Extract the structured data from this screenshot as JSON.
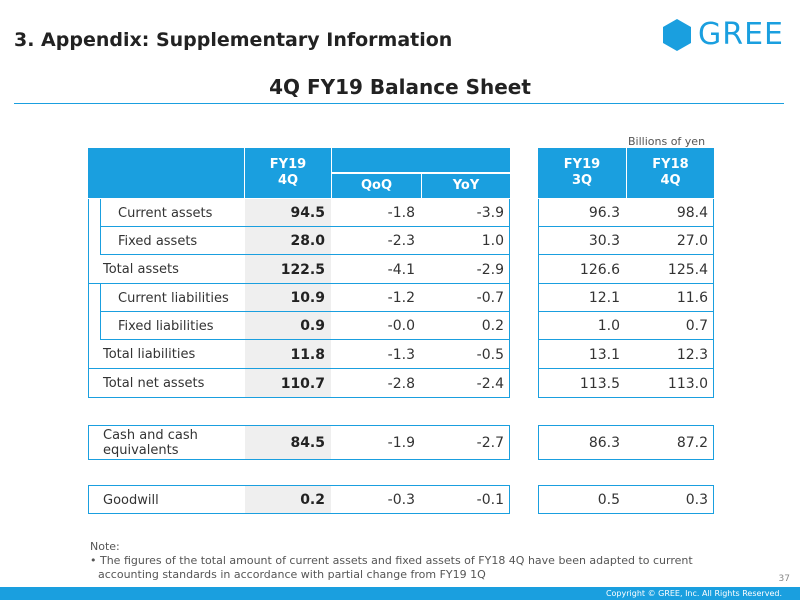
{
  "header": {
    "section_title": "3. Appendix: Supplementary Information",
    "logo_text": "GREE",
    "slide_title": "4Q FY19 Balance Sheet",
    "unit_label": "Billions of yen"
  },
  "columns": {
    "fy19_4q": "FY19\n4Q",
    "qoq": "QoQ",
    "yoy": "YoY",
    "fy19_3q": "FY19\n3Q",
    "fy18_4q": "FY18\n4Q"
  },
  "rows": [
    {
      "label": "Current assets",
      "fy19_4q": "94.5",
      "qoq": "-1.8",
      "yoy": "-3.9",
      "fy19_3q": "96.3",
      "fy18_4q": "98.4"
    },
    {
      "label": "Fixed assets",
      "fy19_4q": "28.0",
      "qoq": "-2.3",
      "yoy": "1.0",
      "fy19_3q": "30.3",
      "fy18_4q": "27.0"
    },
    {
      "label": "Total assets",
      "fy19_4q": "122.5",
      "qoq": "-4.1",
      "yoy": "-2.9",
      "fy19_3q": "126.6",
      "fy18_4q": "125.4"
    },
    {
      "label": "Current liabilities",
      "fy19_4q": "10.9",
      "qoq": "-1.2",
      "yoy": "-0.7",
      "fy19_3q": "12.1",
      "fy18_4q": "11.6"
    },
    {
      "label": "Fixed liabilities",
      "fy19_4q": "0.9",
      "qoq": "-0.0",
      "yoy": "0.2",
      "fy19_3q": "1.0",
      "fy18_4q": "0.7"
    },
    {
      "label": "Total liabilities",
      "fy19_4q": "11.8",
      "qoq": "-1.3",
      "yoy": "-0.5",
      "fy19_3q": "13.1",
      "fy18_4q": "12.3"
    },
    {
      "label": "Total net assets",
      "fy19_4q": "110.7",
      "qoq": "-2.8",
      "yoy": "-2.4",
      "fy19_3q": "113.5",
      "fy18_4q": "113.0"
    },
    {
      "label": "Cash and cash equivalents",
      "fy19_4q": "84.5",
      "qoq": "-1.9",
      "yoy": "-2.7",
      "fy19_3q": "86.3",
      "fy18_4q": "87.2"
    },
    {
      "label": "Goodwill",
      "fy19_4q": "0.2",
      "qoq": "-0.3",
      "yoy": "-0.1",
      "fy19_3q": "0.5",
      "fy18_4q": "0.3"
    }
  ],
  "note": {
    "title": "Note:",
    "text": "• The figures of the total amount of current assets and fixed assets of FY18 4Q have been adapted to current accounting standards in accordance with partial change from FY19 1Q"
  },
  "footer": {
    "page_number": "37",
    "copyright": "Copyright © GREE, Inc. All Rights Reserved."
  },
  "colors": {
    "accent": "#1a9fdf",
    "shade": "#efefef"
  }
}
